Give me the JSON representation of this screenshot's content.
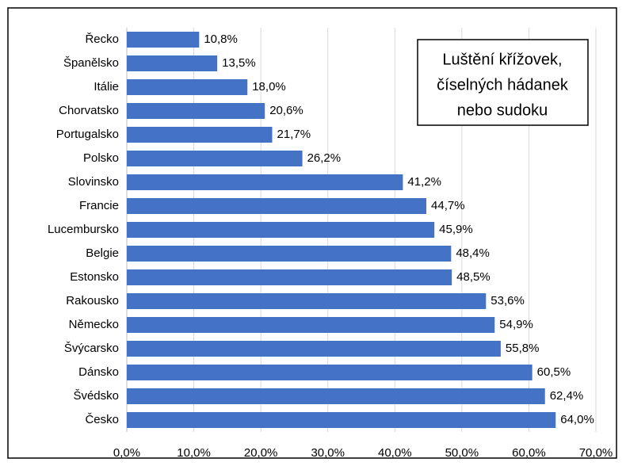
{
  "chart_data": {
    "type": "bar",
    "orientation": "horizontal",
    "title": [
      "Luštění křížovek,",
      "číselných hádanek",
      "nebo sudoku"
    ],
    "categories": [
      "Řecko",
      "Španělsko",
      "Itálie",
      "Chorvatsko",
      "Portugalsko",
      "Polsko",
      "Slovinsko",
      "Francie",
      "Lucembursko",
      "Belgie",
      "Estonsko",
      "Rakousko",
      "Německo",
      "Švýcarsko",
      "Dánsko",
      "Švédsko",
      "Česko"
    ],
    "values": [
      10.8,
      13.5,
      18.0,
      20.6,
      21.7,
      26.2,
      41.2,
      44.7,
      45.9,
      48.4,
      48.5,
      53.6,
      54.9,
      55.8,
      60.5,
      62.4,
      64.0
    ],
    "value_labels": [
      "10,8%",
      "13,5%",
      "18,0%",
      "20,6%",
      "21,7%",
      "26,2%",
      "41,2%",
      "44,7%",
      "45,9%",
      "48,4%",
      "48,5%",
      "53,6%",
      "54,9%",
      "55,8%",
      "60,5%",
      "62,4%",
      "64,0%"
    ],
    "color": "#4472c4",
    "xlim": [
      0,
      70
    ],
    "xticks": [
      {
        "value": 0,
        "label": "0,0%"
      },
      {
        "value": 10,
        "label": "10,0%"
      },
      {
        "value": 20,
        "label": "20,0%"
      },
      {
        "value": 30,
        "label": "30,0%"
      },
      {
        "value": 40,
        "label": "40,0%"
      },
      {
        "value": 50,
        "label": "50,0%"
      },
      {
        "value": 60,
        "label": "60,0%"
      },
      {
        "value": 70,
        "label": "70,0%"
      }
    ],
    "grid": true
  }
}
